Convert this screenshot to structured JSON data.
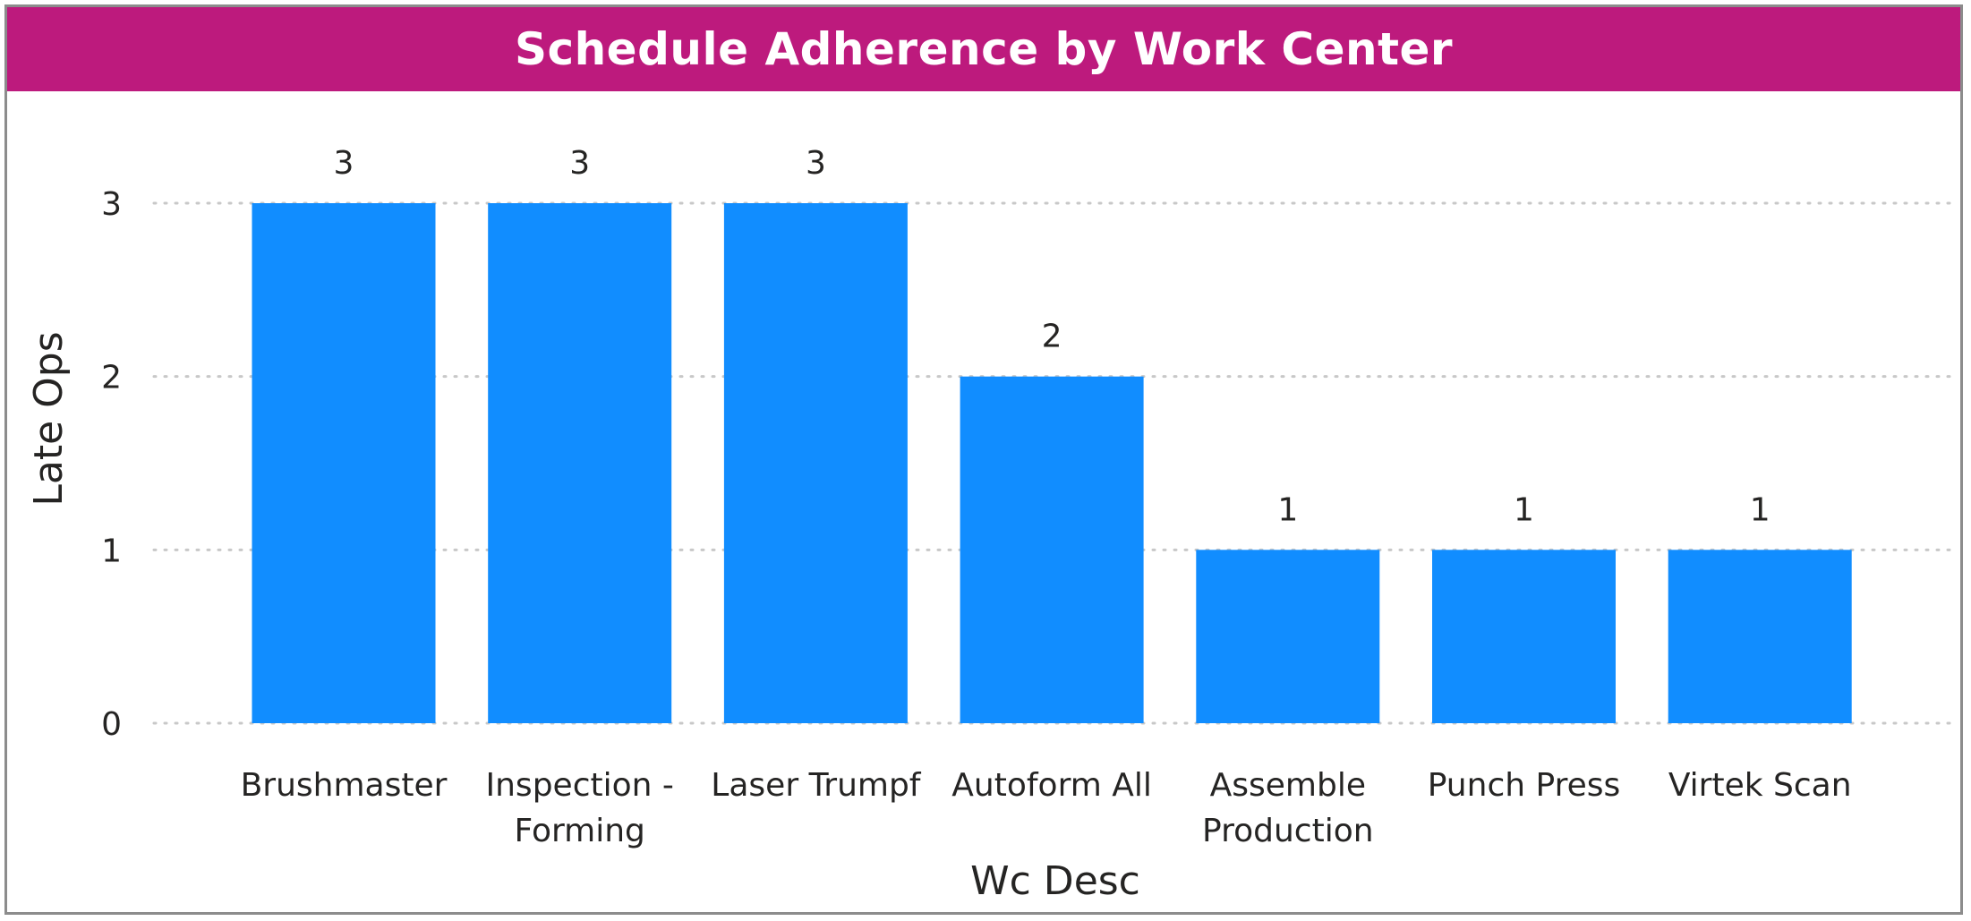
{
  "chart_data": {
    "type": "bar",
    "title": "Schedule Adherence by Work Center",
    "xlabel": "Wc Desc",
    "ylabel": "Late Ops",
    "categories": [
      [
        "Brushmaster"
      ],
      [
        "Inspection -",
        "Forming"
      ],
      [
        "Laser Trumpf"
      ],
      [
        "Autoform All"
      ],
      [
        "Assemble",
        "Production"
      ],
      [
        "Punch Press"
      ],
      [
        "Virtek Scan"
      ]
    ],
    "values": [
      3,
      3,
      3,
      2,
      1,
      1,
      1
    ],
    "ylim": [
      0,
      3
    ],
    "yticks": [
      0,
      1,
      2,
      3
    ],
    "grid": true,
    "data_labels": true,
    "colors": {
      "bar": "#118dff",
      "title_bar": "#bd1a7d",
      "title_text": "#ffffff",
      "grid": "#c8c8c8"
    }
  }
}
